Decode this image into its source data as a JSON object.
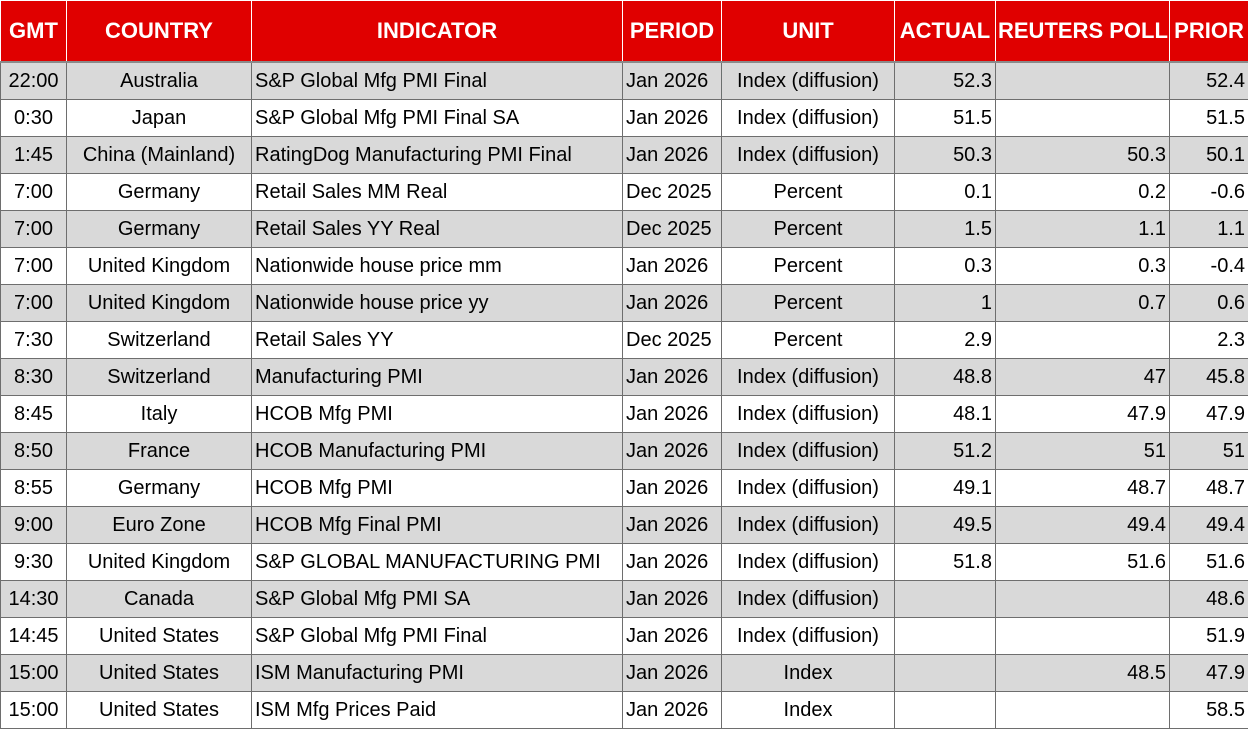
{
  "table": {
    "headers": [
      "GMT",
      "COUNTRY",
      "INDICATOR",
      "PERIOD",
      "UNIT",
      "ACTUAL",
      "REUTERS POLL",
      "PRIOR"
    ],
    "rows": [
      [
        "22:00",
        "Australia",
        "S&P Global Mfg PMI Final",
        "Jan 2026",
        "Index (diffusion)",
        "52.3",
        "",
        "52.4"
      ],
      [
        "0:30",
        "Japan",
        "S&P Global Mfg PMI Final SA",
        "Jan 2026",
        "Index (diffusion)",
        "51.5",
        "",
        "51.5"
      ],
      [
        "1:45",
        "China (Mainland)",
        "RatingDog Manufacturing PMI Final",
        "Jan 2026",
        "Index (diffusion)",
        "50.3",
        "50.3",
        "50.1"
      ],
      [
        "7:00",
        "Germany",
        "Retail Sales MM Real",
        "Dec 2025",
        "Percent",
        "0.1",
        "0.2",
        "-0.6"
      ],
      [
        "7:00",
        "Germany",
        "Retail Sales YY Real",
        "Dec 2025",
        "Percent",
        "1.5",
        "1.1",
        "1.1"
      ],
      [
        "7:00",
        "United Kingdom",
        "Nationwide house price mm",
        "Jan 2026",
        "Percent",
        "0.3",
        "0.3",
        "-0.4"
      ],
      [
        "7:00",
        "United Kingdom",
        "Nationwide house price yy",
        "Jan 2026",
        "Percent",
        "1",
        "0.7",
        "0.6"
      ],
      [
        "7:30",
        "Switzerland",
        "Retail Sales YY",
        "Dec 2025",
        "Percent",
        "2.9",
        "",
        "2.3"
      ],
      [
        "8:30",
        "Switzerland",
        "Manufacturing PMI",
        "Jan 2026",
        "Index (diffusion)",
        "48.8",
        "47",
        "45.8"
      ],
      [
        "8:45",
        "Italy",
        "HCOB Mfg PMI",
        "Jan 2026",
        "Index (diffusion)",
        "48.1",
        "47.9",
        "47.9"
      ],
      [
        "8:50",
        "France",
        "HCOB Manufacturing PMI",
        "Jan 2026",
        "Index (diffusion)",
        "51.2",
        "51",
        "51"
      ],
      [
        "8:55",
        "Germany",
        "HCOB Mfg PMI",
        "Jan 2026",
        "Index (diffusion)",
        "49.1",
        "48.7",
        "48.7"
      ],
      [
        "9:00",
        "Euro Zone",
        "HCOB Mfg Final PMI",
        "Jan 2026",
        "Index (diffusion)",
        "49.5",
        "49.4",
        "49.4"
      ],
      [
        "9:30",
        "United Kingdom",
        "S&P GLOBAL MANUFACTURING PMI",
        "Jan 2026",
        "Index (diffusion)",
        "51.8",
        "51.6",
        "51.6"
      ],
      [
        "14:30",
        "Canada",
        "S&P Global Mfg PMI SA",
        "Jan 2026",
        "Index (diffusion)",
        "",
        "",
        "48.6"
      ],
      [
        "14:45",
        "United States",
        "S&P Global Mfg PMI Final",
        "Jan 2026",
        "Index (diffusion)",
        "",
        "",
        "51.9"
      ],
      [
        "15:00",
        "United States",
        "ISM Manufacturing PMI",
        "Jan 2026",
        "Index",
        "",
        "48.5",
        "47.9"
      ],
      [
        "15:00",
        "United States",
        "ISM Mfg Prices Paid",
        "Jan 2026",
        "Index",
        "",
        "",
        "58.5"
      ]
    ]
  },
  "colors": {
    "header_bg": "#e00000",
    "header_text": "#ffffff",
    "row_alt_bg": "#d9d9d9",
    "row_bg": "#ffffff"
  }
}
